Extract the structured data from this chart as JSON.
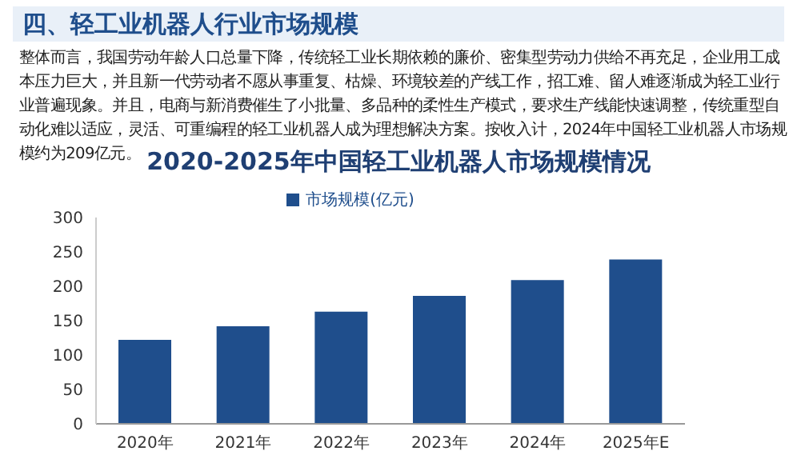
{
  "chart_data": {
    "type": "bar",
    "title": "2020-2025年中国轻工业机器人市场规模情况",
    "annotations": [
      "四、轻工业机器人行业市场规模",
      "整体而言，我国劳动年龄人口总量下降，传统轻工业长期依赖的廉价、密集型劳动力供给不再充足，企业用工成本压力巨大，并且新一代劳动者不愿从事重复、枯燥、环境较差的产线工作，招工难、留人难逐渐成为轻工业行业普遍现象。并且，电商与新消费催生了小批量、多品种的柔性生产模式，要求生产线能快速调整，传统重型自动化难以适应，灵活、可重编程的轻工业机器人成为理想解决方案。按收入计，2024年中国轻工业机器人市场规模约为209亿元。"
    ],
    "categories": [
      "2020年",
      "2021年",
      "2022年",
      "2023年",
      "2024年",
      "2025年E"
    ],
    "series": [
      {
        "name": "市场规模(亿元)",
        "color": "#1f4e8c",
        "values": [
          122,
          142,
          163,
          186,
          209,
          239
        ]
      }
    ],
    "ylim": [
      0,
      300
    ],
    "yticks": [
      0,
      50,
      100,
      150,
      200,
      250,
      300
    ],
    "grid": false,
    "legend": "top"
  }
}
